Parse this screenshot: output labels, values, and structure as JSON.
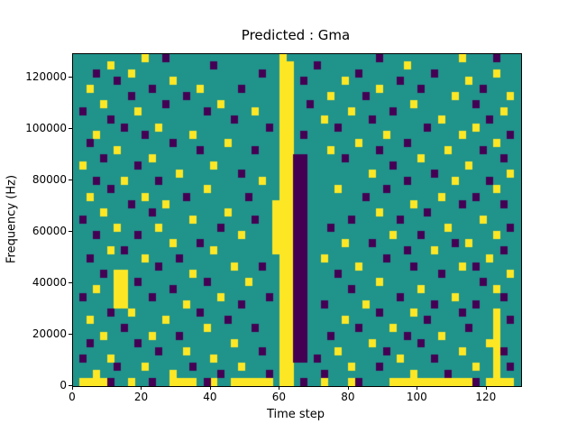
{
  "chart_data": {
    "type": "heatmap",
    "title": "Predicted : Gma",
    "xlabel": "Time step",
    "ylabel": "Frequency (Hz)",
    "xlim": [
      0,
      130
    ],
    "ylim": [
      0,
      129000
    ],
    "x_ticks": [
      0,
      20,
      40,
      60,
      80,
      100,
      120
    ],
    "y_ticks": [
      0,
      20000,
      40000,
      60000,
      80000,
      100000,
      120000
    ],
    "legend_position": "none",
    "grid_lines": false,
    "colors": {
      "background": "#20938b",
      "high": "#fde725",
      "low": "#440154"
    },
    "value_map": {
      "background": 0,
      "high": 1,
      "low": -1
    },
    "grid": {
      "cols": 65,
      "time_steps_per_col": 2,
      "hz_per_row": 3000,
      "note": "rows listed top (high frequency) to bottom (0 Hz); y = high-value cells, p = low-value cells, all other cells are background",
      "rows": [
        {
          "y": [
            10,
            30,
            56
          ],
          "p": [
            13,
            44,
            61
          ]
        },
        {
          "y": [
            5,
            30,
            31,
            48
          ],
          "p": [
            20,
            35
          ]
        },
        {
          "y": [
            8,
            30,
            31,
            61
          ],
          "p": [
            3,
            27,
            41,
            52
          ]
        },
        {
          "y": [
            14,
            30,
            31,
            39,
            57
          ],
          "p": [
            6,
            33,
            47
          ]
        },
        {
          "y": [
            2,
            18,
            30,
            31,
            44
          ],
          "p": [
            11,
            24,
            50,
            59
          ]
        },
        {
          "y": [
            30,
            31,
            37,
            55,
            63
          ],
          "p": [
            8,
            16,
            42
          ]
        },
        {
          "y": [
            4,
            21,
            30,
            31,
            49
          ],
          "p": [
            13,
            34,
            58
          ]
        },
        {
          "y": [
            9,
            26,
            30,
            31,
            40,
            62
          ],
          "p": [
            1,
            19,
            46
          ]
        },
        {
          "y": [
            30,
            31,
            36,
            53
          ],
          "p": [
            5,
            23,
            43,
            60
          ]
        },
        {
          "y": [
            12,
            30,
            31,
            58
          ],
          "p": [
            7,
            28,
            38,
            51
          ]
        },
        {
          "y": [
            3,
            17,
            30,
            31,
            45,
            56
          ],
          "p": [
            10,
            33,
            63
          ]
        },
        {
          "y": [
            22,
            30,
            31,
            41,
            61
          ],
          "p": [
            2,
            14,
            48
          ]
        },
        {
          "y": [
            6,
            30,
            31,
            37,
            54
          ],
          "p": [
            18,
            26,
            44,
            59
          ]
        },
        {
          "y": [
            11,
            30,
            31,
            50
          ],
          "p": [
            4,
            32,
            33,
            39,
            62
          ]
        },
        {
          "y": [
            1,
            20,
            30,
            31,
            57
          ],
          "p": [
            9,
            32,
            33,
            46
          ]
        },
        {
          "y": [
            15,
            30,
            31,
            43,
            63
          ],
          "p": [
            24,
            32,
            33,
            52
          ]
        },
        {
          "y": [
            7,
            27,
            30,
            31,
            55
          ],
          "p": [
            3,
            12,
            32,
            33,
            48,
            60
          ]
        },
        {
          "y": [
            19,
            30,
            31,
            38,
            61
          ],
          "p": [
            5,
            32,
            33,
            45
          ]
        },
        {
          "y": [
            2,
            10,
            30,
            31,
            53
          ],
          "p": [
            16,
            25,
            32,
            33,
            42,
            58
          ]
        },
        {
          "y": [
            13,
            29,
            30,
            31,
            49
          ],
          "p": [
            8,
            32,
            33,
            56,
            62
          ]
        },
        {
          "y": [
            4,
            22,
            29,
            30,
            31,
            44
          ],
          "p": [
            11,
            32,
            33,
            51
          ]
        },
        {
          "y": [
            17,
            29,
            30,
            31,
            59
          ],
          "p": [
            1,
            26,
            32,
            33,
            40,
            47
          ]
        },
        {
          "y": [
            6,
            12,
            29,
            30,
            31,
            54
          ],
          "p": [
            21,
            32,
            33,
            37,
            63
          ]
        },
        {
          "y": [
            24,
            29,
            30,
            31,
            46,
            61
          ],
          "p": [
            3,
            9,
            32,
            33,
            50
          ]
        },
        {
          "y": [
            14,
            29,
            30,
            31,
            39,
            57
          ],
          "p": [
            18,
            32,
            33,
            43,
            55
          ]
        },
        {
          "y": [
            5,
            20,
            29,
            30,
            31,
            52
          ],
          "p": [
            7,
            32,
            33,
            48,
            62
          ]
        },
        {
          "y": [
            10,
            30,
            31,
            36,
            60
          ],
          "p": [
            2,
            15,
            32,
            33,
            45
          ]
        },
        {
          "y": [
            23,
            30,
            31,
            41,
            56
          ],
          "p": [
            12,
            27,
            32,
            33,
            49,
            58
          ]
        },
        {
          "y": [
            6,
            7,
            17,
            30,
            31,
            63
          ],
          "p": [
            4,
            32,
            33,
            38,
            53
          ]
        },
        {
          "y": [
            6,
            7,
            25,
            30,
            31,
            44
          ],
          "p": [
            9,
            19,
            32,
            33,
            59
          ]
        },
        {
          "y": [
            3,
            6,
            7,
            30,
            31,
            50,
            61
          ],
          "p": [
            14,
            32,
            33,
            40
          ]
        },
        {
          "y": [
            6,
            7,
            21,
            30,
            31,
            55
          ],
          "p": [
            1,
            11,
            28,
            32,
            33,
            47,
            62
          ]
        },
        {
          "y": [
            6,
            7,
            16,
            30,
            31,
            42
          ],
          "p": [
            24,
            32,
            33,
            36,
            52,
            58
          ]
        },
        {
          "y": [
            8,
            30,
            31,
            49,
            61
          ],
          "p": [
            5,
            18,
            32,
            33,
            44,
            56
          ]
        },
        {
          "y": [
            2,
            13,
            30,
            31,
            39,
            61
          ],
          "p": [
            22,
            32,
            33,
            51,
            63
          ]
        },
        {
          "y": [
            19,
            30,
            31,
            46,
            61
          ],
          "p": [
            7,
            26,
            32,
            33,
            41,
            57
          ]
        },
        {
          "y": [
            4,
            11,
            30,
            31,
            53,
            61
          ],
          "p": [
            15,
            32,
            33,
            37,
            48
          ]
        },
        {
          "y": [
            23,
            30,
            31,
            43,
            60,
            61
          ],
          "p": [
            2,
            9,
            32,
            33,
            50
          ]
        },
        {
          "y": [
            16,
            30,
            31,
            38,
            56,
            61
          ],
          "p": [
            12,
            27,
            32,
            33,
            45,
            62
          ]
        },
        {
          "y": [
            5,
            20,
            30,
            31,
            47,
            61
          ],
          "p": [
            1,
            32,
            33,
            35,
            52
          ]
        },
        {
          "y": [
            10,
            24,
            30,
            31,
            40,
            58,
            61
          ],
          "p": [
            6,
            17,
            44,
            63
          ]
        },
        {
          "y": [
            3,
            14,
            30,
            31,
            49,
            61
          ],
          "p": [
            21,
            28,
            36,
            54
          ]
        },
        {
          "y": [
            1,
            2,
            3,
            4,
            8,
            14,
            15,
            16,
            17,
            20,
            23,
            24,
            25,
            26,
            27,
            28,
            30,
            31,
            36,
            40,
            46,
            47,
            48,
            49,
            50,
            51,
            52,
            53,
            54,
            55,
            56,
            57,
            60,
            61,
            62,
            63
          ],
          "p": [
            5,
            11,
            19,
            33,
            41,
            58
          ]
        }
      ]
    }
  }
}
